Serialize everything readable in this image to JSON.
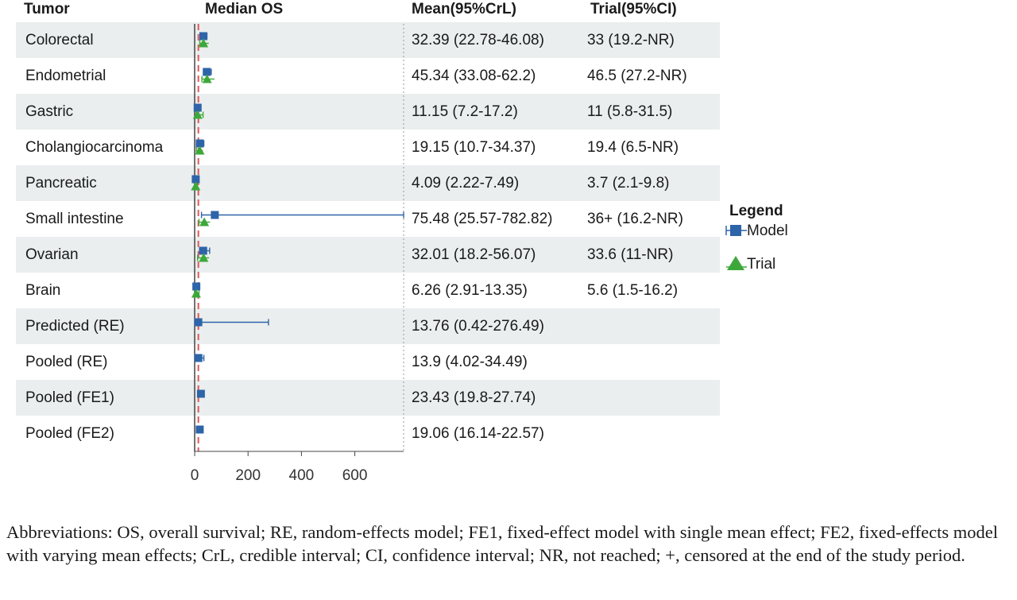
{
  "headers": {
    "tumor": "Tumor",
    "median_os": "Median OS",
    "mean": "Mean(95%CrL)",
    "trial": "Trial(95%CI)"
  },
  "rows": [
    {
      "label": "Colorectal",
      "mean_text": "32.39 (22.78-46.08)",
      "trial_text": "33 (19.2-NR)"
    },
    {
      "label": "Endometrial",
      "mean_text": "45.34 (33.08-62.2)",
      "trial_text": "46.5 (27.2-NR)"
    },
    {
      "label": "Gastric",
      "mean_text": "11.15 (7.2-17.2)",
      "trial_text": "11 (5.8-31.5)"
    },
    {
      "label": "Cholangiocarcinoma",
      "mean_text": "19.15 (10.7-34.37)",
      "trial_text": "19.4 (6.5-NR)"
    },
    {
      "label": "Pancreatic",
      "mean_text": "4.09 (2.22-7.49)",
      "trial_text": "3.7 (2.1-9.8)"
    },
    {
      "label": "Small intestine",
      "mean_text": "75.48 (25.57-782.82)",
      "trial_text": "36+ (16.2-NR)"
    },
    {
      "label": "Ovarian",
      "mean_text": "32.01 (18.2-56.07)",
      "trial_text": "33.6 (11-NR)"
    },
    {
      "label": "Brain",
      "mean_text": "6.26 (2.91-13.35)",
      "trial_text": "5.6 (1.5-16.2)"
    },
    {
      "label": "Predicted (RE)",
      "mean_text": "13.76 (0.42-276.49)",
      "trial_text": ""
    },
    {
      "label": "Pooled (RE)",
      "mean_text": "13.9 (4.02-34.49)",
      "trial_text": ""
    },
    {
      "label": "Pooled (FE1)",
      "mean_text": "23.43 (19.8-27.74)",
      "trial_text": ""
    },
    {
      "label": "Pooled (FE2)",
      "mean_text": "19.06 (16.14-22.57)",
      "trial_text": ""
    }
  ],
  "legend": {
    "title": "Legend",
    "model": "Model",
    "trial": "Trial"
  },
  "abbreviations": "Abbreviations: OS, overall survival; RE, random-effects model; FE1, fixed-effect model with single mean effect; FE2, fixed-effects model with varying mean effects; CrL, credible interval; CI, confidence interval; NR, not reached; +, censored at the end of the study period.",
  "colors": {
    "model": "#2e64a8",
    "trial": "#3da83a",
    "reference_line": "#e05858",
    "row_shade": "#eaeeee"
  },
  "chart_data": {
    "type": "forest",
    "xlabel": "",
    "xlim": [
      0,
      782.82
    ],
    "xticks": [
      0,
      200,
      400,
      600
    ],
    "reference_line_x": 13.9,
    "categories": [
      "Colorectal",
      "Endometrial",
      "Gastric",
      "Cholangiocarcinoma",
      "Pancreatic",
      "Small intestine",
      "Ovarian",
      "Brain",
      "Predicted (RE)",
      "Pooled (RE)",
      "Pooled (FE1)",
      "Pooled (FE2)"
    ],
    "series": [
      {
        "name": "Model",
        "marker": "square",
        "values": [
          32.39,
          45.34,
          11.15,
          19.15,
          4.09,
          75.48,
          32.01,
          6.26,
          13.76,
          13.9,
          23.43,
          19.06
        ],
        "lower": [
          22.78,
          33.08,
          7.2,
          10.7,
          2.22,
          25.57,
          18.2,
          2.91,
          0.42,
          4.02,
          19.8,
          16.14
        ],
        "upper": [
          46.08,
          62.2,
          17.2,
          34.37,
          7.49,
          782.82,
          56.07,
          13.35,
          276.49,
          34.49,
          27.74,
          22.57
        ]
      },
      {
        "name": "Trial",
        "marker": "triangle",
        "values": [
          33,
          46.5,
          11,
          19.4,
          3.7,
          36,
          33.6,
          5.6,
          null,
          null,
          null,
          null
        ],
        "lower": [
          19.2,
          27.2,
          5.8,
          6.5,
          2.1,
          16.2,
          11,
          1.5,
          null,
          null,
          null,
          null
        ],
        "upper": [
          null,
          null,
          31.5,
          null,
          9.8,
          null,
          null,
          16.2,
          null,
          null,
          null,
          null
        ]
      }
    ],
    "legend_position": "right"
  }
}
